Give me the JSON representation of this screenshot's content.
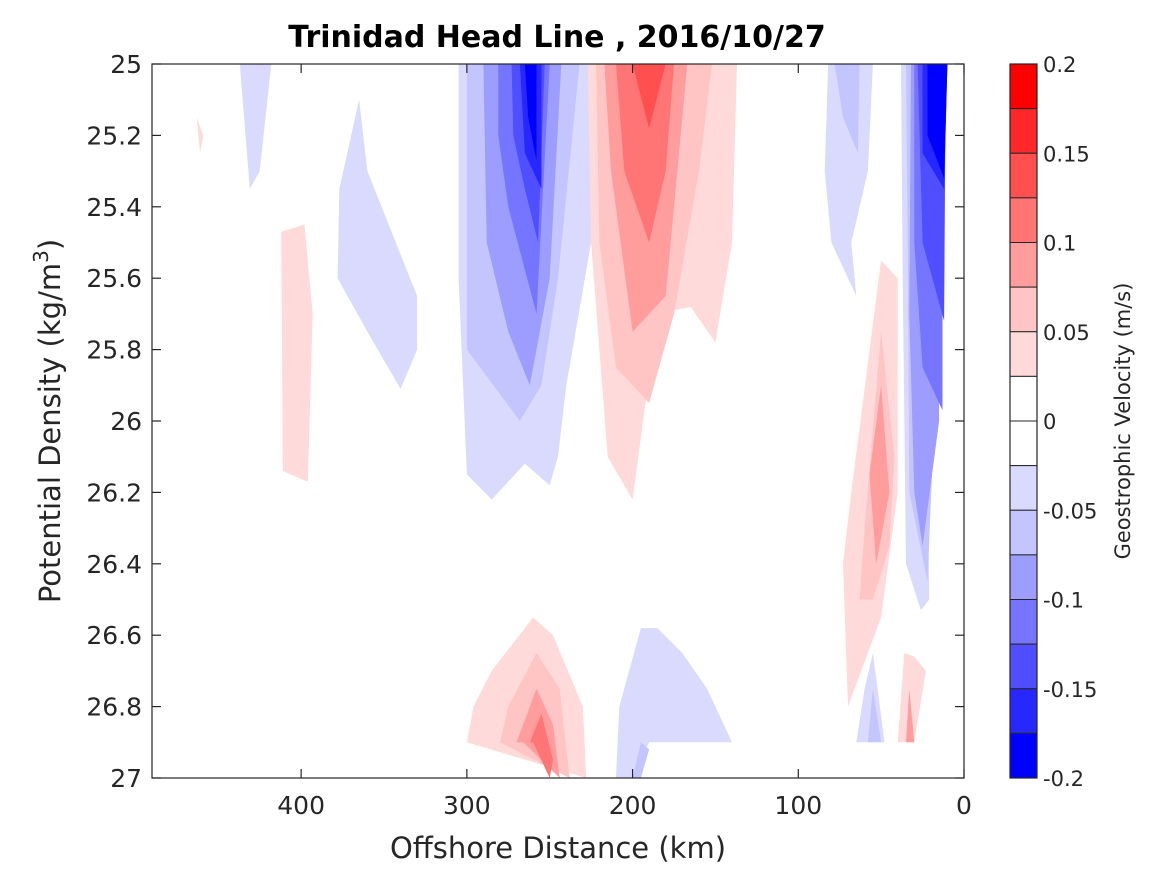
{
  "chart_data": {
    "type": "filled-contour",
    "title": "Trinidad Head Line , 2016/10/27",
    "xlabel": "Offshore Distance (km)",
    "ylabel_main": "Potential Density (kg/m",
    "ylabel_sup": "3",
    "ylabel_close": ")",
    "xlim": [
      490,
      0
    ],
    "x_reversed": true,
    "ylim": [
      25,
      27
    ],
    "y_reversed": true,
    "xticks": [
      400,
      300,
      200,
      100,
      0
    ],
    "yticks": [
      25,
      25.2,
      25.4,
      25.6,
      25.8,
      26,
      26.2,
      26.4,
      26.6,
      26.8,
      27
    ],
    "xtick_labels": [
      "400",
      "300",
      "200",
      "100",
      "0"
    ],
    "ytick_labels": [
      "25",
      "25.2",
      "25.4",
      "25.6",
      "25.8",
      "26",
      "26.2",
      "26.4",
      "26.6",
      "26.8",
      "27"
    ],
    "colorbar": {
      "label": "Geostrophic Velocity (m/s)",
      "range": [
        -0.2,
        0.2
      ],
      "ticks": [
        0.2,
        0.15,
        0.1,
        0.05,
        0,
        -0.05,
        -0.1,
        -0.15,
        -0.2
      ],
      "tick_labels": [
        "0.2",
        "0.15",
        "0.1",
        "0.05",
        "0",
        "-0.05",
        "-0.1",
        "-0.15",
        "-0.2"
      ],
      "levels": [
        {
          "color": "#ff0000",
          "from": 0.175,
          "to": 0.2
        },
        {
          "color": "#ff2727",
          "from": 0.15,
          "to": 0.175
        },
        {
          "color": "#ff4f4f",
          "from": 0.125,
          "to": 0.15
        },
        {
          "color": "#ff7575",
          "from": 0.1,
          "to": 0.125
        },
        {
          "color": "#ff9d9d",
          "from": 0.075,
          "to": 0.1
        },
        {
          "color": "#ffc4c4",
          "from": 0.05,
          "to": 0.075
        },
        {
          "color": "#ffdada",
          "from": 0.025,
          "to": 0.05
        },
        {
          "color": "#ffffff",
          "from": 0,
          "to": 0.025
        },
        {
          "color": "#ffffff",
          "from": -0.025,
          "to": 0
        },
        {
          "color": "#dadafe",
          "from": -0.05,
          "to": -0.025
        },
        {
          "color": "#c4c4ff",
          "from": -0.075,
          "to": -0.05
        },
        {
          "color": "#9d9dff",
          "from": -0.1,
          "to": -0.075
        },
        {
          "color": "#7575ff",
          "from": -0.125,
          "to": -0.1
        },
        {
          "color": "#4f4fff",
          "from": -0.15,
          "to": -0.125
        },
        {
          "color": "#2727ff",
          "from": -0.175,
          "to": -0.15
        },
        {
          "color": "#0000ff",
          "from": -0.2,
          "to": -0.175
        }
      ]
    },
    "contour_regions": [
      {
        "name": "pos-spot-460",
        "color": "#ffdada",
        "points": [
          [
            463,
            25.15
          ],
          [
            461,
            25.25
          ],
          [
            459,
            25.2
          ]
        ]
      },
      {
        "name": "pos-band-405",
        "color": "#ffdada",
        "points": [
          [
            412,
            25.47
          ],
          [
            398,
            25.45
          ],
          [
            393,
            25.7
          ],
          [
            396,
            26.17
          ],
          [
            411,
            26.14
          ]
        ]
      },
      {
        "name": "neg-band-430",
        "color": "#dadafe",
        "points": [
          [
            437,
            25
          ],
          [
            418,
            25
          ],
          [
            425,
            25.3
          ],
          [
            431,
            25.35
          ]
        ]
      },
      {
        "name": "neg-band-350",
        "color": "#dadafe",
        "points": [
          [
            365,
            25.1
          ],
          [
            377,
            25.35
          ],
          [
            378,
            25.6
          ],
          [
            360,
            25.75
          ],
          [
            340,
            25.91
          ],
          [
            330,
            25.8
          ],
          [
            330,
            25.65
          ],
          [
            360,
            25.3
          ]
        ]
      },
      {
        "name": "neg-jet-l1",
        "color": "#dadafe",
        "points": [
          [
            305,
            25
          ],
          [
            222,
            25
          ],
          [
            225,
            25.5
          ],
          [
            240,
            25.9
          ],
          [
            245,
            26.1
          ],
          [
            250,
            26.18
          ],
          [
            265,
            26.12
          ],
          [
            285,
            26.22
          ],
          [
            300,
            26.15
          ],
          [
            305,
            25.6
          ]
        ]
      },
      {
        "name": "neg-jet-l2",
        "color": "#c4c4ff",
        "points": [
          [
            300,
            25
          ],
          [
            232,
            25
          ],
          [
            245,
            25.6
          ],
          [
            255,
            25.9
          ],
          [
            268,
            26
          ],
          [
            300,
            25.8
          ]
        ]
      },
      {
        "name": "neg-jet-l3",
        "color": "#9d9dff",
        "points": [
          [
            290,
            25
          ],
          [
            243,
            25
          ],
          [
            250,
            25.6
          ],
          [
            262,
            25.9
          ],
          [
            275,
            25.75
          ],
          [
            288,
            25.5
          ]
        ]
      },
      {
        "name": "neg-jet-l4",
        "color": "#7575ff",
        "points": [
          [
            281,
            25
          ],
          [
            250,
            25
          ],
          [
            258,
            25.7
          ],
          [
            275,
            25.4
          ],
          [
            281,
            25.2
          ]
        ]
      },
      {
        "name": "neg-jet-l5",
        "color": "#4f4fff",
        "points": [
          [
            273,
            25
          ],
          [
            253,
            25
          ],
          [
            257,
            25.5
          ],
          [
            265,
            25.35
          ],
          [
            272,
            25.2
          ]
        ]
      },
      {
        "name": "neg-jet-l6",
        "color": "#2727ff",
        "points": [
          [
            268,
            25
          ],
          [
            255,
            25
          ],
          [
            255,
            25.35
          ],
          [
            265,
            25.25
          ]
        ]
      },
      {
        "name": "neg-jet-l7",
        "color": "#0000ff",
        "points": [
          [
            265,
            25
          ],
          [
            258,
            25
          ],
          [
            258,
            25.27
          ],
          [
            263,
            25.15
          ]
        ]
      },
      {
        "name": "pos-jet-l1",
        "color": "#ffdada",
        "points": [
          [
            227,
            25
          ],
          [
            137,
            25
          ],
          [
            140,
            25.5
          ],
          [
            150,
            25.78
          ],
          [
            165,
            25.68
          ],
          [
            185,
            25.7
          ],
          [
            200,
            26.22
          ],
          [
            215,
            26.1
          ],
          [
            225,
            25.5
          ]
        ]
      },
      {
        "name": "pos-jet-l2",
        "color": "#ffc4c4",
        "points": [
          [
            222,
            25
          ],
          [
            152,
            25
          ],
          [
            160,
            25.3
          ],
          [
            175,
            25.7
          ],
          [
            190,
            25.95
          ],
          [
            210,
            25.85
          ],
          [
            220,
            25.5
          ]
        ]
      },
      {
        "name": "pos-jet-l3",
        "color": "#ff9d9d",
        "points": [
          [
            217,
            25
          ],
          [
            167,
            25
          ],
          [
            180,
            25.65
          ],
          [
            200,
            25.75
          ],
          [
            213,
            25.3
          ]
        ]
      },
      {
        "name": "pos-jet-l4",
        "color": "#ff7575",
        "points": [
          [
            210,
            25
          ],
          [
            175,
            25
          ],
          [
            180,
            25.3
          ],
          [
            190,
            25.5
          ],
          [
            205,
            25.3
          ]
        ]
      },
      {
        "name": "pos-jet-l5",
        "color": "#ff4f4f",
        "points": [
          [
            200,
            25
          ],
          [
            180,
            25
          ],
          [
            190,
            25.18
          ]
        ]
      },
      {
        "name": "pos-deep-l1",
        "color": "#ffdada",
        "points": [
          [
            300,
            26.9
          ],
          [
            296,
            26.8
          ],
          [
            285,
            26.7
          ],
          [
            260,
            26.55
          ],
          [
            248,
            26.6
          ],
          [
            230,
            26.8
          ],
          [
            228,
            27
          ],
          [
            300,
            26.9
          ]
        ]
      },
      {
        "name": "pos-deep-l2",
        "color": "#ffc4c4",
        "points": [
          [
            280,
            26.9
          ],
          [
            275,
            26.8
          ],
          [
            258,
            26.65
          ],
          [
            244,
            26.75
          ],
          [
            238,
            27
          ],
          [
            280,
            26.9
          ]
        ]
      },
      {
        "name": "pos-deep-l3",
        "color": "#ff9d9d",
        "points": [
          [
            270,
            26.9
          ],
          [
            258,
            26.75
          ],
          [
            248,
            26.85
          ],
          [
            244,
            27
          ],
          [
            266,
            26.9
          ]
        ]
      },
      {
        "name": "pos-deep-l4",
        "color": "#ff7575",
        "points": [
          [
            262,
            26.9
          ],
          [
            255,
            26.82
          ],
          [
            248,
            26.95
          ],
          [
            250,
            27
          ],
          [
            260,
            26.9
          ]
        ]
      },
      {
        "name": "neg-deep-l1",
        "color": "#dadafe",
        "points": [
          [
            210,
            27
          ],
          [
            208,
            26.8
          ],
          [
            195,
            26.58
          ],
          [
            185,
            26.58
          ],
          [
            170,
            26.65
          ],
          [
            155,
            26.75
          ],
          [
            140,
            26.9
          ],
          [
            190,
            26.9
          ],
          [
            200,
            27
          ]
        ]
      },
      {
        "name": "neg-deep-l2",
        "color": "#c4c4ff",
        "points": [
          [
            200,
            27
          ],
          [
            195,
            26.9
          ],
          [
            190,
            26.92
          ],
          [
            195,
            27
          ]
        ]
      },
      {
        "name": "neg-near-l1",
        "color": "#dadafe",
        "points": [
          [
            82,
            25
          ],
          [
            55,
            25
          ],
          [
            58,
            25.3
          ],
          [
            68,
            25.5
          ],
          [
            65,
            25.65
          ],
          [
            80,
            25.5
          ],
          [
            84,
            25.3
          ]
        ]
      },
      {
        "name": "neg-near-l2",
        "color": "#c4c4ff",
        "points": [
          [
            78,
            25
          ],
          [
            63,
            25
          ],
          [
            64,
            25.25
          ],
          [
            73,
            25.15
          ]
        ]
      },
      {
        "name": "pos-near-l1",
        "color": "#ffdada",
        "points": [
          [
            68,
            26.2
          ],
          [
            50,
            25.55
          ],
          [
            40,
            25.6
          ],
          [
            40,
            26.2
          ],
          [
            50,
            26.55
          ],
          [
            70,
            26.8
          ],
          [
            73,
            26.4
          ]
        ]
      },
      {
        "name": "pos-near-l2",
        "color": "#ffc4c4",
        "points": [
          [
            60,
            26.3
          ],
          [
            50,
            25.75
          ],
          [
            42,
            26.1
          ],
          [
            45,
            26.35
          ],
          [
            55,
            26.5
          ],
          [
            63,
            26.5
          ]
        ]
      },
      {
        "name": "pos-near-l3",
        "color": "#ff9d9d",
        "points": [
          [
            57,
            26.15
          ],
          [
            50,
            25.9
          ],
          [
            45,
            26.2
          ],
          [
            53,
            26.4
          ]
        ]
      },
      {
        "name": "neg-coast-l1",
        "color": "#dadafe",
        "points": [
          [
            38,
            25
          ],
          [
            20,
            25
          ],
          [
            22,
            25.9
          ],
          [
            21,
            26.5
          ],
          [
            26,
            26.53
          ],
          [
            35,
            26.4
          ],
          [
            37,
            25.6
          ]
        ]
      },
      {
        "name": "neg-coast-l2",
        "color": "#c4c4ff",
        "points": [
          [
            35,
            25
          ],
          [
            18,
            25
          ],
          [
            18,
            26
          ],
          [
            22,
            26.45
          ],
          [
            33,
            26.2
          ],
          [
            34,
            25.5
          ]
        ]
      },
      {
        "name": "neg-coast-l3",
        "color": "#9d9dff",
        "points": [
          [
            32,
            25
          ],
          [
            15,
            25
          ],
          [
            15,
            26
          ],
          [
            25,
            26.35
          ],
          [
            30,
            26.2
          ],
          [
            33,
            25.7
          ]
        ]
      },
      {
        "name": "neg-coast-l4",
        "color": "#7575ff",
        "points": [
          [
            30,
            25
          ],
          [
            13,
            25
          ],
          [
            13,
            25.97
          ],
          [
            25,
            25.85
          ],
          [
            30,
            25.5
          ]
        ]
      },
      {
        "name": "neg-coast-l5",
        "color": "#4f4fff",
        "points": [
          [
            28,
            25
          ],
          [
            11,
            25
          ],
          [
            12,
            25.72
          ],
          [
            25,
            25.5
          ]
        ]
      },
      {
        "name": "neg-coast-l6",
        "color": "#2727ff",
        "points": [
          [
            25,
            25
          ],
          [
            10,
            25
          ],
          [
            12,
            25.35
          ],
          [
            25,
            25.25
          ]
        ]
      },
      {
        "name": "neg-coast-l7",
        "color": "#0000ff",
        "points": [
          [
            22,
            25
          ],
          [
            10,
            25
          ],
          [
            12,
            25.32
          ],
          [
            22,
            25.2
          ]
        ]
      },
      {
        "name": "neg-bottom-l1",
        "color": "#dadafe",
        "points": [
          [
            65,
            26.9
          ],
          [
            60,
            26.75
          ],
          [
            55,
            26.65
          ],
          [
            48,
            26.9
          ]
        ]
      },
      {
        "name": "neg-bottom-l2",
        "color": "#c4c4ff",
        "points": [
          [
            58,
            26.9
          ],
          [
            55,
            26.75
          ],
          [
            50,
            26.9
          ]
        ]
      },
      {
        "name": "pos-bottom-l1",
        "color": "#ffdada",
        "points": [
          [
            40,
            26.9
          ],
          [
            36,
            26.65
          ],
          [
            30,
            26.66
          ],
          [
            23,
            26.7
          ],
          [
            30,
            26.9
          ]
        ]
      },
      {
        "name": "pos-bottom-l2",
        "color": "#ff9d9d",
        "points": [
          [
            35,
            26.9
          ],
          [
            33,
            26.75
          ],
          [
            30,
            26.9
          ]
        ]
      }
    ]
  }
}
